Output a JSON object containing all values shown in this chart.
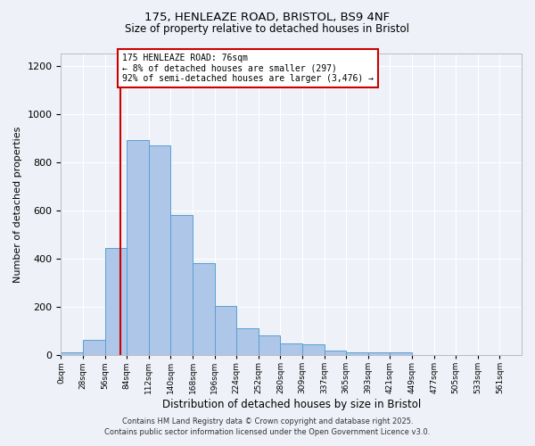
{
  "title_line1": "175, HENLEAZE ROAD, BRISTOL, BS9 4NF",
  "title_line2": "Size of property relative to detached houses in Bristol",
  "xlabel": "Distribution of detached houses by size in Bristol",
  "ylabel": "Number of detached properties",
  "bar_labels": [
    "0sqm",
    "28sqm",
    "56sqm",
    "84sqm",
    "112sqm",
    "140sqm",
    "168sqm",
    "196sqm",
    "224sqm",
    "252sqm",
    "280sqm",
    "309sqm",
    "337sqm",
    "365sqm",
    "393sqm",
    "421sqm",
    "449sqm",
    "477sqm",
    "505sqm",
    "533sqm",
    "561sqm"
  ],
  "bar_values": [
    10,
    65,
    445,
    890,
    870,
    580,
    380,
    205,
    110,
    80,
    50,
    45,
    20,
    13,
    10,
    12,
    0,
    0,
    0,
    0,
    0
  ],
  "bar_color": "#aec6e8",
  "bar_edgecolor": "#5a9fd4",
  "ylim": [
    0,
    1250
  ],
  "yticks": [
    0,
    200,
    400,
    600,
    800,
    1000,
    1200
  ],
  "property_line_x": 76,
  "property_line_color": "#cc0000",
  "bin_size": 28,
  "annotation_text": "175 HENLEAZE ROAD: 76sqm\n← 8% of detached houses are smaller (297)\n92% of semi-detached houses are larger (3,476) →",
  "annotation_box_color": "#cc0000",
  "footer_line1": "Contains HM Land Registry data © Crown copyright and database right 2025.",
  "footer_line2": "Contains public sector information licensed under the Open Government Licence v3.0.",
  "bg_color": "#eef2f8",
  "grid_color": "#ffffff"
}
